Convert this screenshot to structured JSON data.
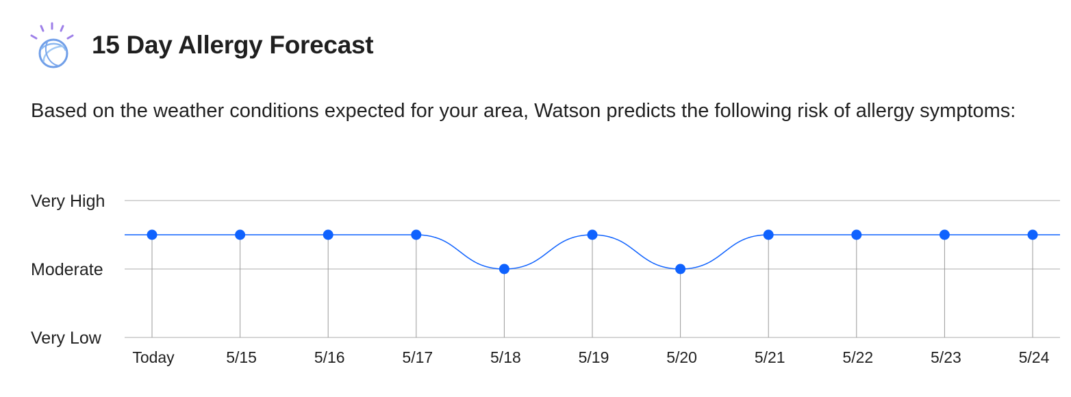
{
  "header": {
    "title": "15 Day Allergy Forecast",
    "logo_icon": "watson-logo-icon"
  },
  "description": "Based on the weather conditions expected for your area, Watson predicts the following risk of allergy symptoms:",
  "colors": {
    "series": "#0f62fe",
    "grid": "#c8c8c8",
    "drop_line": "#999999"
  },
  "chart_data": {
    "type": "line",
    "title": "",
    "xlabel": "",
    "ylabel": "",
    "categories": [
      "Today",
      "5/15",
      "5/16",
      "5/17",
      "5/18",
      "5/19",
      "5/20",
      "5/21",
      "5/22",
      "5/23",
      "5/24"
    ],
    "y_levels": [
      "Very Low",
      "Moderate",
      "Very High"
    ],
    "ylim": [
      0,
      4
    ],
    "series": [
      {
        "values": [
          3,
          3,
          3,
          3,
          2,
          3,
          2,
          3,
          3,
          3,
          3
        ]
      }
    ],
    "curve": "smooth",
    "grid": true,
    "legend": "none"
  }
}
